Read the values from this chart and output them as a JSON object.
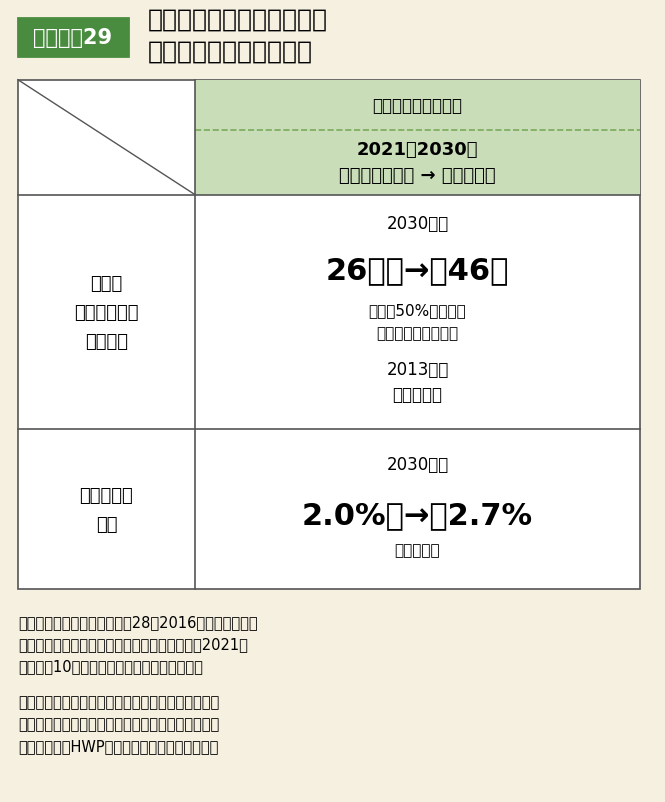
{
  "bg_color": "#f5f0e0",
  "title_label": "資料Ｉ－29",
  "title_label_bg": "#4a8c3f",
  "title_label_text_color": "#ffffff",
  "title_label_border": "#4a8c3f",
  "title_text": "我が国の温室効果ガス排出\n削減と森林吸収量の目標",
  "title_text_color": "#000000",
  "header_bg": "#c8ddb8",
  "header_border_color": "#7aaa5a",
  "header_row1_text": "地球温暖化対策計画",
  "header_row2_text": "2021〜2030年\nこれまでの目標 → 新たな目標",
  "table_border_color": "#555555",
  "left_col1_text": "日本の\n温室効果ガス\n削減目標",
  "left_col2_text": "森林吸収量\n目標",
  "right_col1_line1": "2030年度",
  "right_col1_line2": "26％　→　46％",
  "right_col1_line3": "さらに50%の高みに",
  "right_col1_line4": "向けて挑戦を続ける",
  "right_col1_line5": "2013年度",
  "right_col1_line6": "総排出量比",
  "right_col2_line1": "2030年度",
  "right_col2_line2": "2.0%　→　2.7%",
  "right_col2_line3": "（同上比）",
  "note1": "注１：これまでの目標は平成28（2016）年５月の地球\n　　　温暖化対策計画、新たな目標は令和３（2021）\n　　　年10月の地球温暖化対策計画に記載。",
  "note2": "　２：森林吸収量目標には、間伐等の森林経営活動\n　　　等が行われている森林の吸収量と、伐採木材\n　　　製品（HWP）による炭素貯蔵量を計上。",
  "large_pct_color": "#000000",
  "small_text_color": "#333333"
}
